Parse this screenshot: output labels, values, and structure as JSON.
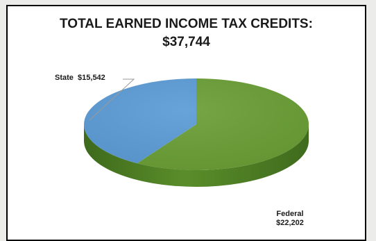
{
  "chart_data": {
    "type": "pie",
    "title_line1": "TOTAL EARNED INCOME TAX CREDITS:",
    "title_line2": "$37,744",
    "slices": [
      {
        "name": "Federal",
        "value": 22202,
        "value_label": "$22,202",
        "color": "#6a9e35"
      },
      {
        "name": "State",
        "value": 15542,
        "value_label": "$15,542",
        "color": "#5b9bd5"
      }
    ],
    "style": "3d-tilted",
    "legend": "none"
  }
}
